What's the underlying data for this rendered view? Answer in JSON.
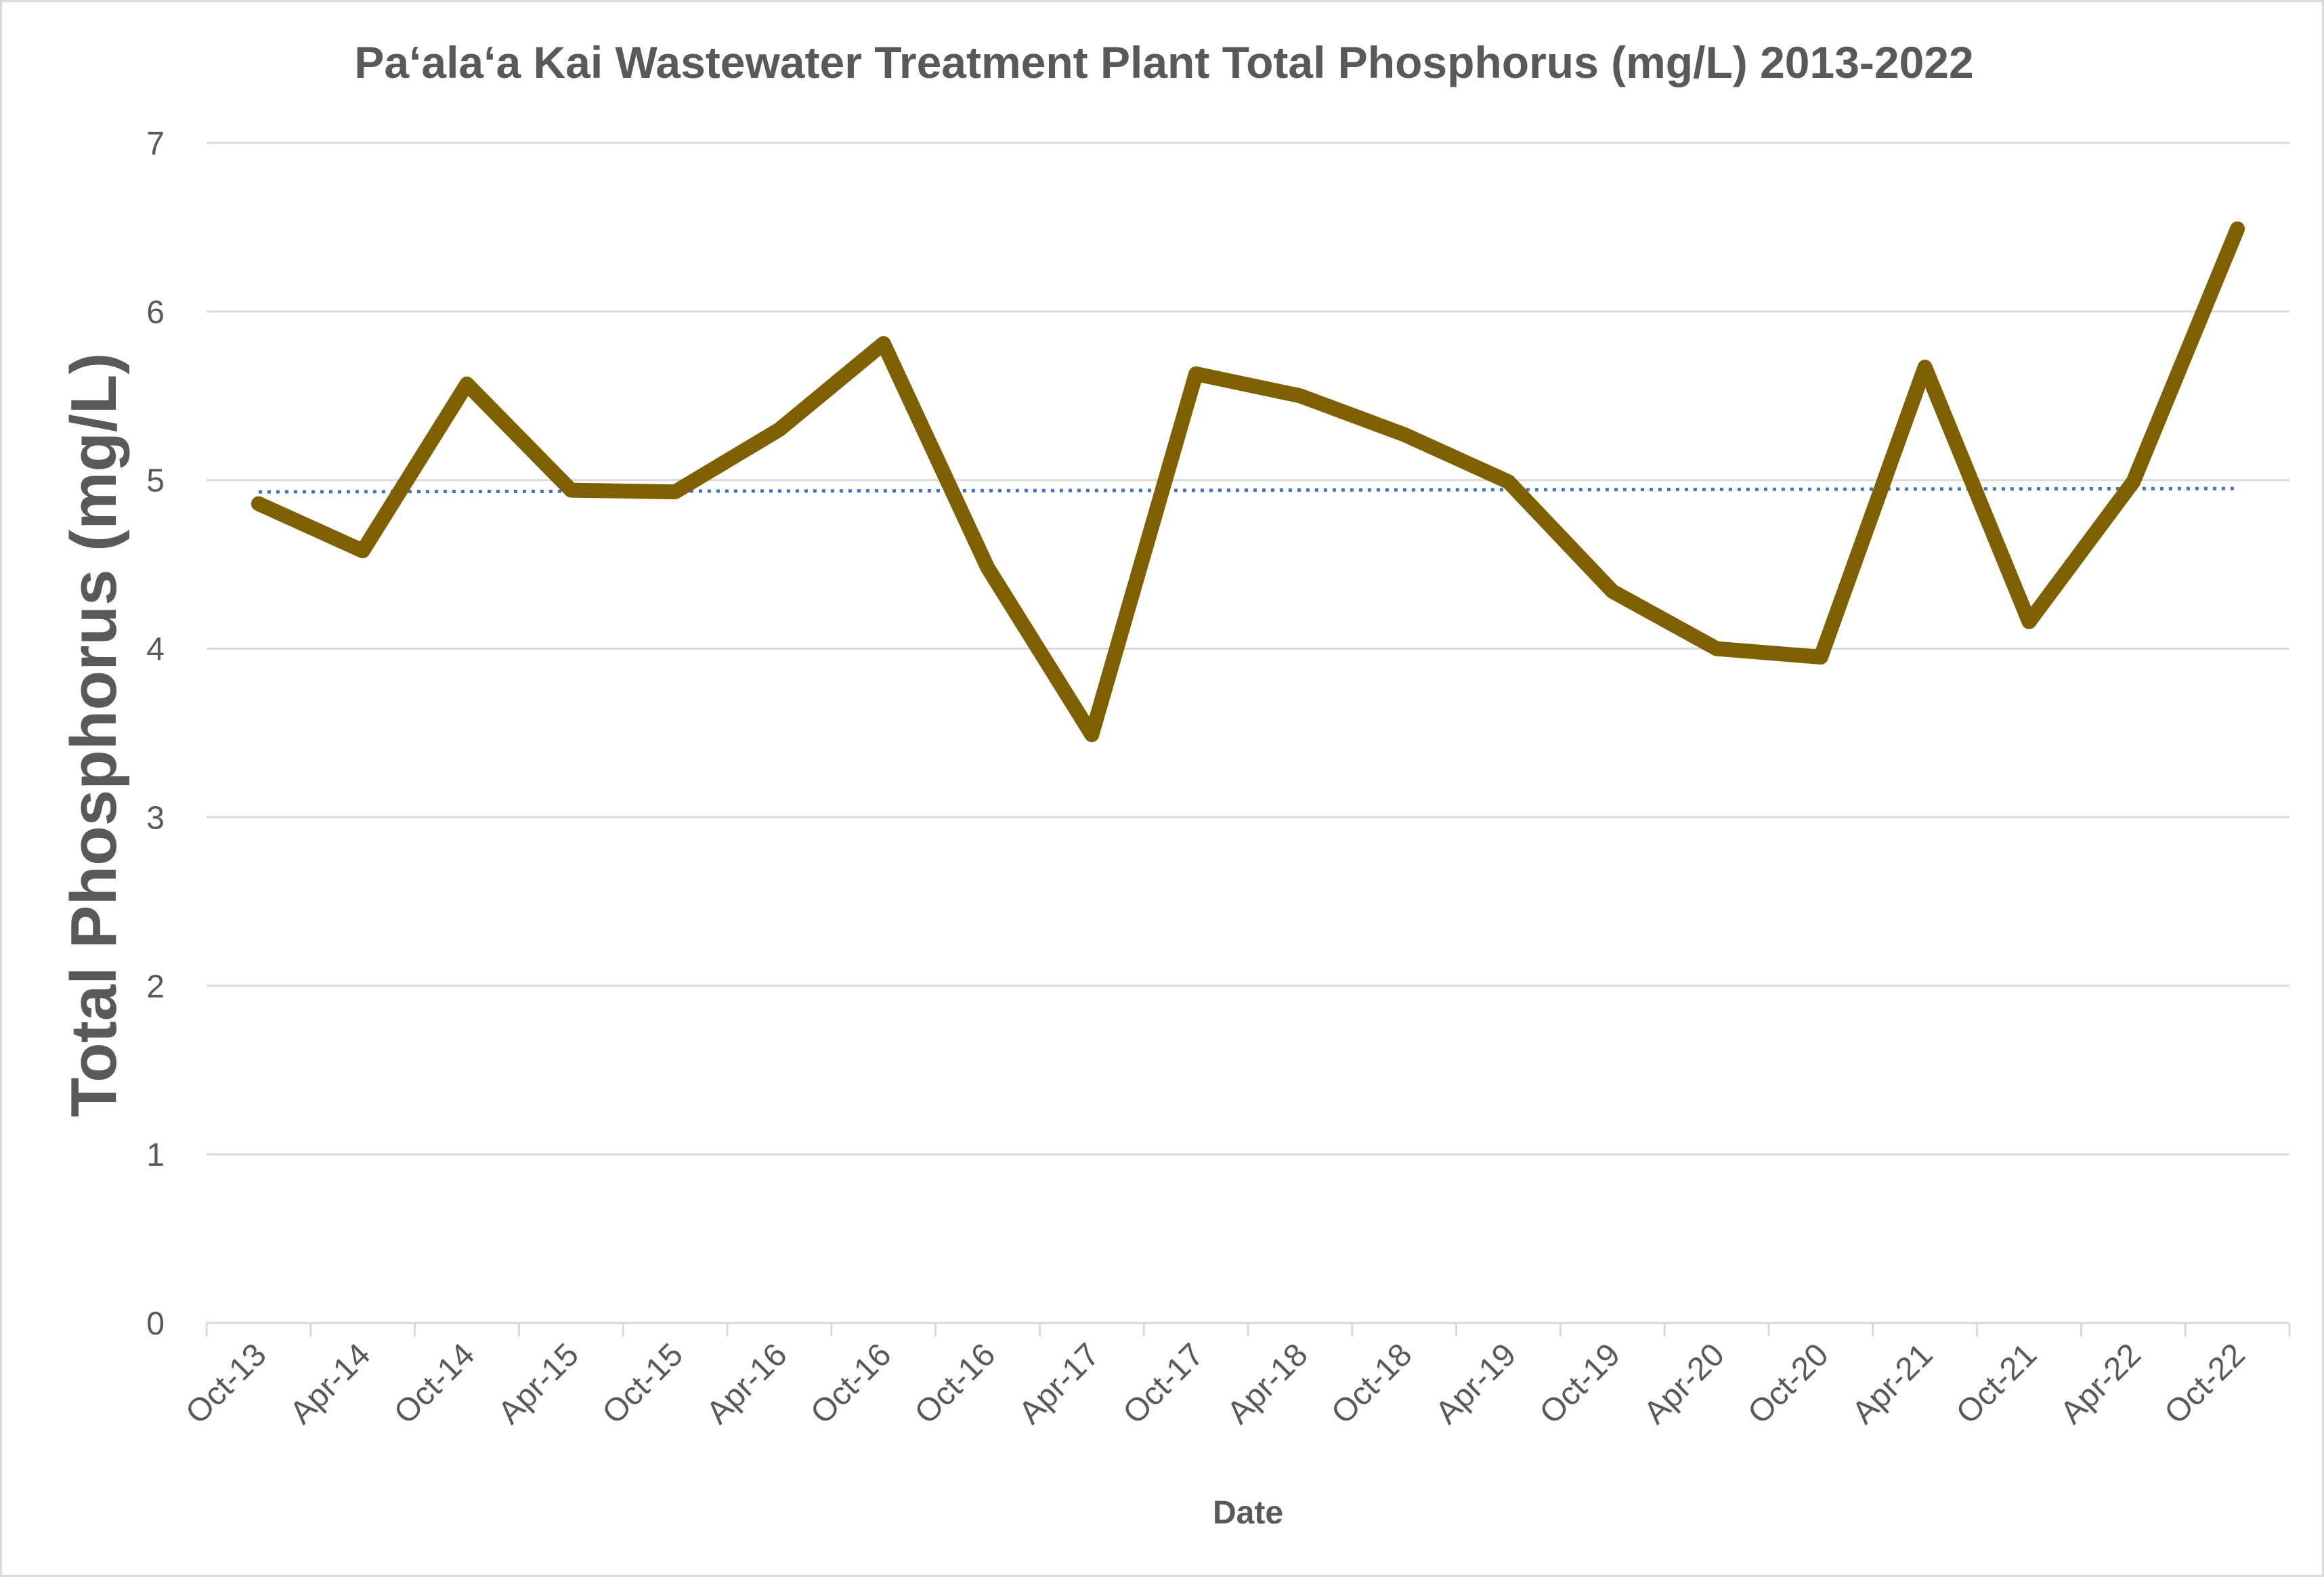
{
  "chart_data": {
    "type": "line",
    "title": "Pa‘ala‘a Kai Wastewater Treatment Plant Total Phosphorus (mg/L) 2013-2022",
    "xlabel": "Date",
    "ylabel": "Total Phosphorus (mg/L)",
    "ylim": [
      0,
      7
    ],
    "yticks": [
      0,
      1,
      2,
      3,
      4,
      5,
      6,
      7
    ],
    "grid": true,
    "categories": [
      "Oct-13",
      "Apr-14",
      "Oct-14",
      "Apr-15",
      "Oct-15",
      "Apr-16",
      "Oct-16",
      "Oct-16",
      "Apr-17",
      "Oct-17",
      "Apr-18",
      "Oct-18",
      "Apr-19",
      "Oct-19",
      "Apr-20",
      "Oct-20",
      "Apr-21",
      "Oct-21",
      "Apr-22",
      "Oct-22"
    ],
    "series": [
      {
        "name": "Total Phosphorus",
        "color": "#7f6000",
        "style": "solid",
        "values": [
          4.86,
          4.58,
          5.57,
          4.94,
          4.93,
          5.3,
          5.81,
          4.48,
          3.49,
          5.63,
          5.5,
          5.27,
          4.99,
          4.34,
          4.0,
          3.95,
          5.67,
          4.16,
          4.99,
          6.49
        ]
      },
      {
        "name": "Linear trendline",
        "color": "#4472c4",
        "style": "dotted",
        "values": [
          4.93,
          4.931,
          4.932,
          4.933,
          4.934,
          4.935,
          4.936,
          4.937,
          4.938,
          4.939,
          4.941,
          4.942,
          4.943,
          4.944,
          4.945,
          4.946,
          4.947,
          4.948,
          4.949,
          4.95
        ]
      }
    ]
  }
}
